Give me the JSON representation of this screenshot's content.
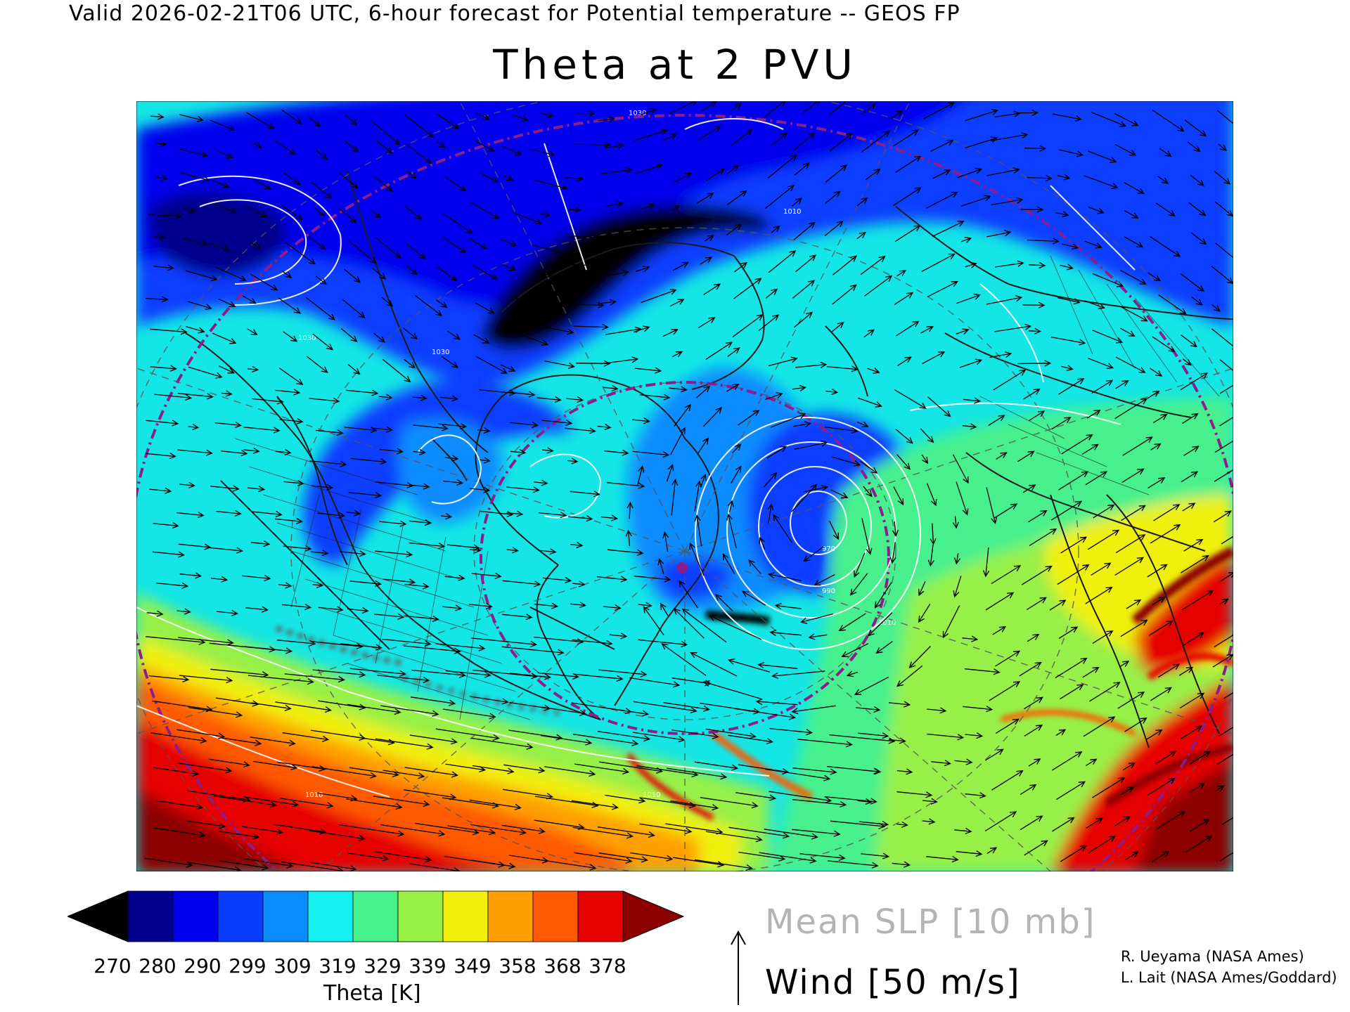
{
  "header": {
    "text": "Valid 2026-02-21T06 UTC, 6-hour forecast for Potential temperature -- GEOS FP"
  },
  "title": "Theta at 2 PVU",
  "colorbar": {
    "label": "Theta [K]",
    "ticks": [
      "270",
      "280",
      "290",
      "299",
      "309",
      "319",
      "329",
      "339",
      "349",
      "358",
      "368",
      "378"
    ],
    "colors": [
      "#000000",
      "#00008c",
      "#0000ee",
      "#0a3cff",
      "#0a8cff",
      "#14f0f0",
      "#46f08c",
      "#96f046",
      "#f0f00a",
      "#ffa000",
      "#ff5a00",
      "#e60000",
      "#8c0000"
    ]
  },
  "legend": {
    "slp": "Mean SLP [10 mb]",
    "wind": "Wind [50 m/s]",
    "slp_color": "#b4b4b4"
  },
  "credits": {
    "line1": "R. Ueyama (NASA Ames)",
    "line2": "L. Lait (NASA Ames/Goddard)"
  },
  "map": {
    "contour_labels": [
      "1030",
      "1010",
      "1030",
      "1030",
      "970",
      "990",
      "1010",
      "1010",
      "1010"
    ],
    "colors": {
      "background_cyan": "#14e6e6",
      "deep_blue": "#0a3cff",
      "mid_blue": "#0a8cff",
      "black": "#000000",
      "green": "#46f08c",
      "yellow_green": "#96f046",
      "yellow": "#f0f00a",
      "orange": "#ffa000",
      "red": "#ff3c00",
      "dark_red": "#8c0000",
      "slp_contour": "#ffffff",
      "latitude_circle": "#8c1e8c"
    }
  }
}
